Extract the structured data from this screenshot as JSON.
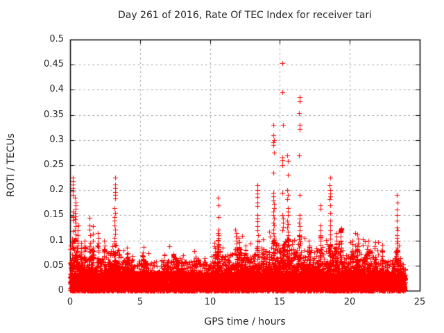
{
  "chart_data": {
    "type": "scatter",
    "title": "Day 261 of 2016, Rate Of TEC Index for receiver tari",
    "xlabel": "GPS time / hours",
    "ylabel": "ROTI / TECUs",
    "xlim": [
      0,
      25
    ],
    "ylim": [
      0,
      0.5
    ],
    "xticks": {
      "values": [
        0,
        5,
        10,
        15,
        20,
        25
      ],
      "labels": [
        "0",
        "5",
        "10",
        "15",
        "20",
        "25"
      ]
    },
    "yticks": {
      "values": [
        0,
        0.05,
        0.1,
        0.15,
        0.2,
        0.25,
        0.3,
        0.35,
        0.4,
        0.45,
        0.5
      ],
      "labels": [
        "0",
        "0.05",
        "0.1",
        "0.15",
        "0.2",
        "0.25",
        "0.3",
        "0.35",
        "0.4",
        "0.45",
        "0.5"
      ]
    },
    "grid": true,
    "legend": "none",
    "marker": "plus",
    "marker_color": "#ff0000",
    "grid_color": "#9c9c9c",
    "axis_color": "#000000",
    "text_color": "#262626",
    "data_start_hour": 0,
    "data_end_hour": 23.95,
    "epoch_step_hours": 0.008333,
    "seed": 2016261,
    "spikes": [
      {
        "t": 0.2,
        "values": [
          0.225,
          0.218,
          0.212,
          0.205,
          0.198,
          0.19
        ]
      },
      {
        "t": 0.38,
        "values": [
          0.185,
          0.175,
          0.17,
          0.163,
          0.155,
          0.148,
          0.142,
          0.135,
          0.128,
          0.12,
          0.112,
          0.105
        ]
      },
      {
        "t": 0.55,
        "values": [
          0.13,
          0.12,
          0.11,
          0.1,
          0.095,
          0.09
        ]
      },
      {
        "t": 0.8,
        "values": [
          0.095,
          0.085
        ]
      },
      {
        "t": 1.05,
        "values": [
          0.1,
          0.09
        ]
      },
      {
        "t": 1.4,
        "values": [
          0.145,
          0.13,
          0.122,
          0.11,
          0.095,
          0.088
        ]
      },
      {
        "t": 1.62,
        "values": [
          0.128,
          0.113,
          0.1
        ]
      },
      {
        "t": 2.0,
        "values": [
          0.115,
          0.105,
          0.095
        ]
      },
      {
        "t": 2.45,
        "values": [
          0.1,
          0.09
        ]
      },
      {
        "t": 3.2,
        "values": [
          0.225,
          0.212,
          0.205,
          0.196,
          0.19,
          0.184,
          0.165,
          0.155,
          0.146,
          0.14,
          0.13,
          0.122,
          0.113,
          0.105,
          0.098,
          0.09
        ]
      },
      {
        "t": 4.1,
        "values": [
          0.085,
          0.075
        ]
      },
      {
        "t": 5.2,
        "values": [
          0.076,
          0.07
        ]
      },
      {
        "t": 7.4,
        "values": [
          0.073
        ]
      },
      {
        "t": 9.0,
        "values": [
          0.068
        ]
      },
      {
        "t": 10.35,
        "values": [
          0.095,
          0.088
        ]
      },
      {
        "t": 10.6,
        "values": [
          0.185,
          0.17,
          0.146,
          0.122,
          0.115,
          0.11,
          0.105,
          0.1,
          0.092
        ]
      },
      {
        "t": 11.9,
        "values": [
          0.115,
          0.108,
          0.1,
          0.094
        ]
      },
      {
        "t": 12.1,
        "values": [
          0.105,
          0.096
        ]
      },
      {
        "t": 12.55,
        "values": [
          0.09,
          0.082
        ]
      },
      {
        "t": 13.4,
        "values": [
          0.21,
          0.2,
          0.193,
          0.186,
          0.175,
          0.168,
          0.15,
          0.144,
          0.138,
          0.128,
          0.12,
          0.11,
          0.1
        ]
      },
      {
        "t": 14.55,
        "values": [
          0.33,
          0.31,
          0.3,
          0.295,
          0.29,
          0.275,
          0.235,
          0.195,
          0.188,
          0.18,
          0.172,
          0.165,
          0.158,
          0.15,
          0.143,
          0.136,
          0.13,
          0.122,
          0.115,
          0.108,
          0.1
        ]
      },
      {
        "t": 15.2,
        "values": [
          0.453,
          0.395,
          0.33,
          0.265,
          0.26,
          0.25,
          0.195,
          0.15,
          0.143,
          0.135,
          0.127,
          0.12
        ]
      },
      {
        "t": 15.55,
        "values": [
          0.27,
          0.258,
          0.23,
          0.2,
          0.19,
          0.183,
          0.165,
          0.158,
          0.15,
          0.14,
          0.133,
          0.126,
          0.118,
          0.11
        ]
      },
      {
        "t": 16.4,
        "values": [
          0.385,
          0.377,
          0.353,
          0.33,
          0.322,
          0.27,
          0.19,
          0.15,
          0.143,
          0.136,
          0.128,
          0.12,
          0.11
        ]
      },
      {
        "t": 17.1,
        "values": [
          0.1,
          0.09
        ]
      },
      {
        "t": 17.9,
        "values": [
          0.17,
          0.163,
          0.13,
          0.12,
          0.11
        ]
      },
      {
        "t": 18.6,
        "values": [
          0.225,
          0.21,
          0.2,
          0.194,
          0.188,
          0.183,
          0.17,
          0.155,
          0.14,
          0.13,
          0.12,
          0.112,
          0.104
        ]
      },
      {
        "t": 19.05,
        "values": [
          0.115,
          0.108,
          0.1
        ]
      },
      {
        "t": 19.37,
        "values": [
          0.125,
          0.124,
          0.123,
          0.122,
          0.121,
          0.12,
          0.119,
          0.118,
          0.117,
          0.116,
          0.122,
          0.119
        ]
      },
      {
        "t": 20.2,
        "values": [
          0.1,
          0.092
        ]
      },
      {
        "t": 20.55,
        "values": [
          0.112,
          0.104,
          0.095,
          0.088
        ]
      },
      {
        "t": 21.25,
        "values": [
          0.09,
          0.083
        ]
      },
      {
        "t": 21.8,
        "values": [
          0.096,
          0.088
        ]
      },
      {
        "t": 22.3,
        "values": [
          0.08
        ]
      },
      {
        "t": 23.38,
        "values": [
          0.19,
          0.176,
          0.161,
          0.15,
          0.14,
          0.126,
          0.12,
          0.111,
          0.105,
          0.098
        ]
      }
    ],
    "baseline_envelope": {
      "t": [
        0,
        0.3,
        0.7,
        1.1,
        1.5,
        2.0,
        2.6,
        3.2,
        3.7,
        4.2,
        4.7,
        5.2,
        5.7,
        6.2,
        6.7,
        7.2,
        7.7,
        8.2,
        8.7,
        9.2,
        9.7,
        10.1,
        10.6,
        11.0,
        11.5,
        12.0,
        12.4,
        12.8,
        13.2,
        13.5,
        13.9,
        14.3,
        14.6,
        15.0,
        15.4,
        15.7,
        16.1,
        16.45,
        16.8,
        17.2,
        17.6,
        18.0,
        18.6,
        19.0,
        19.4,
        19.8,
        20.2,
        20.6,
        21.0,
        21.4,
        21.8,
        22.2,
        22.6,
        23.0,
        23.4,
        23.7,
        23.95
      ],
      "vmax": [
        0.09,
        0.1,
        0.08,
        0.065,
        0.075,
        0.065,
        0.07,
        0.1,
        0.065,
        0.07,
        0.055,
        0.065,
        0.055,
        0.06,
        0.065,
        0.06,
        0.068,
        0.062,
        0.058,
        0.062,
        0.058,
        0.055,
        0.09,
        0.068,
        0.075,
        0.09,
        0.075,
        0.07,
        0.08,
        0.1,
        0.082,
        0.08,
        0.11,
        0.085,
        0.1,
        0.11,
        0.08,
        0.1,
        0.078,
        0.085,
        0.078,
        0.09,
        0.095,
        0.09,
        0.095,
        0.07,
        0.075,
        0.09,
        0.07,
        0.082,
        0.078,
        0.068,
        0.062,
        0.06,
        0.085,
        0.06,
        0.05
      ]
    }
  }
}
